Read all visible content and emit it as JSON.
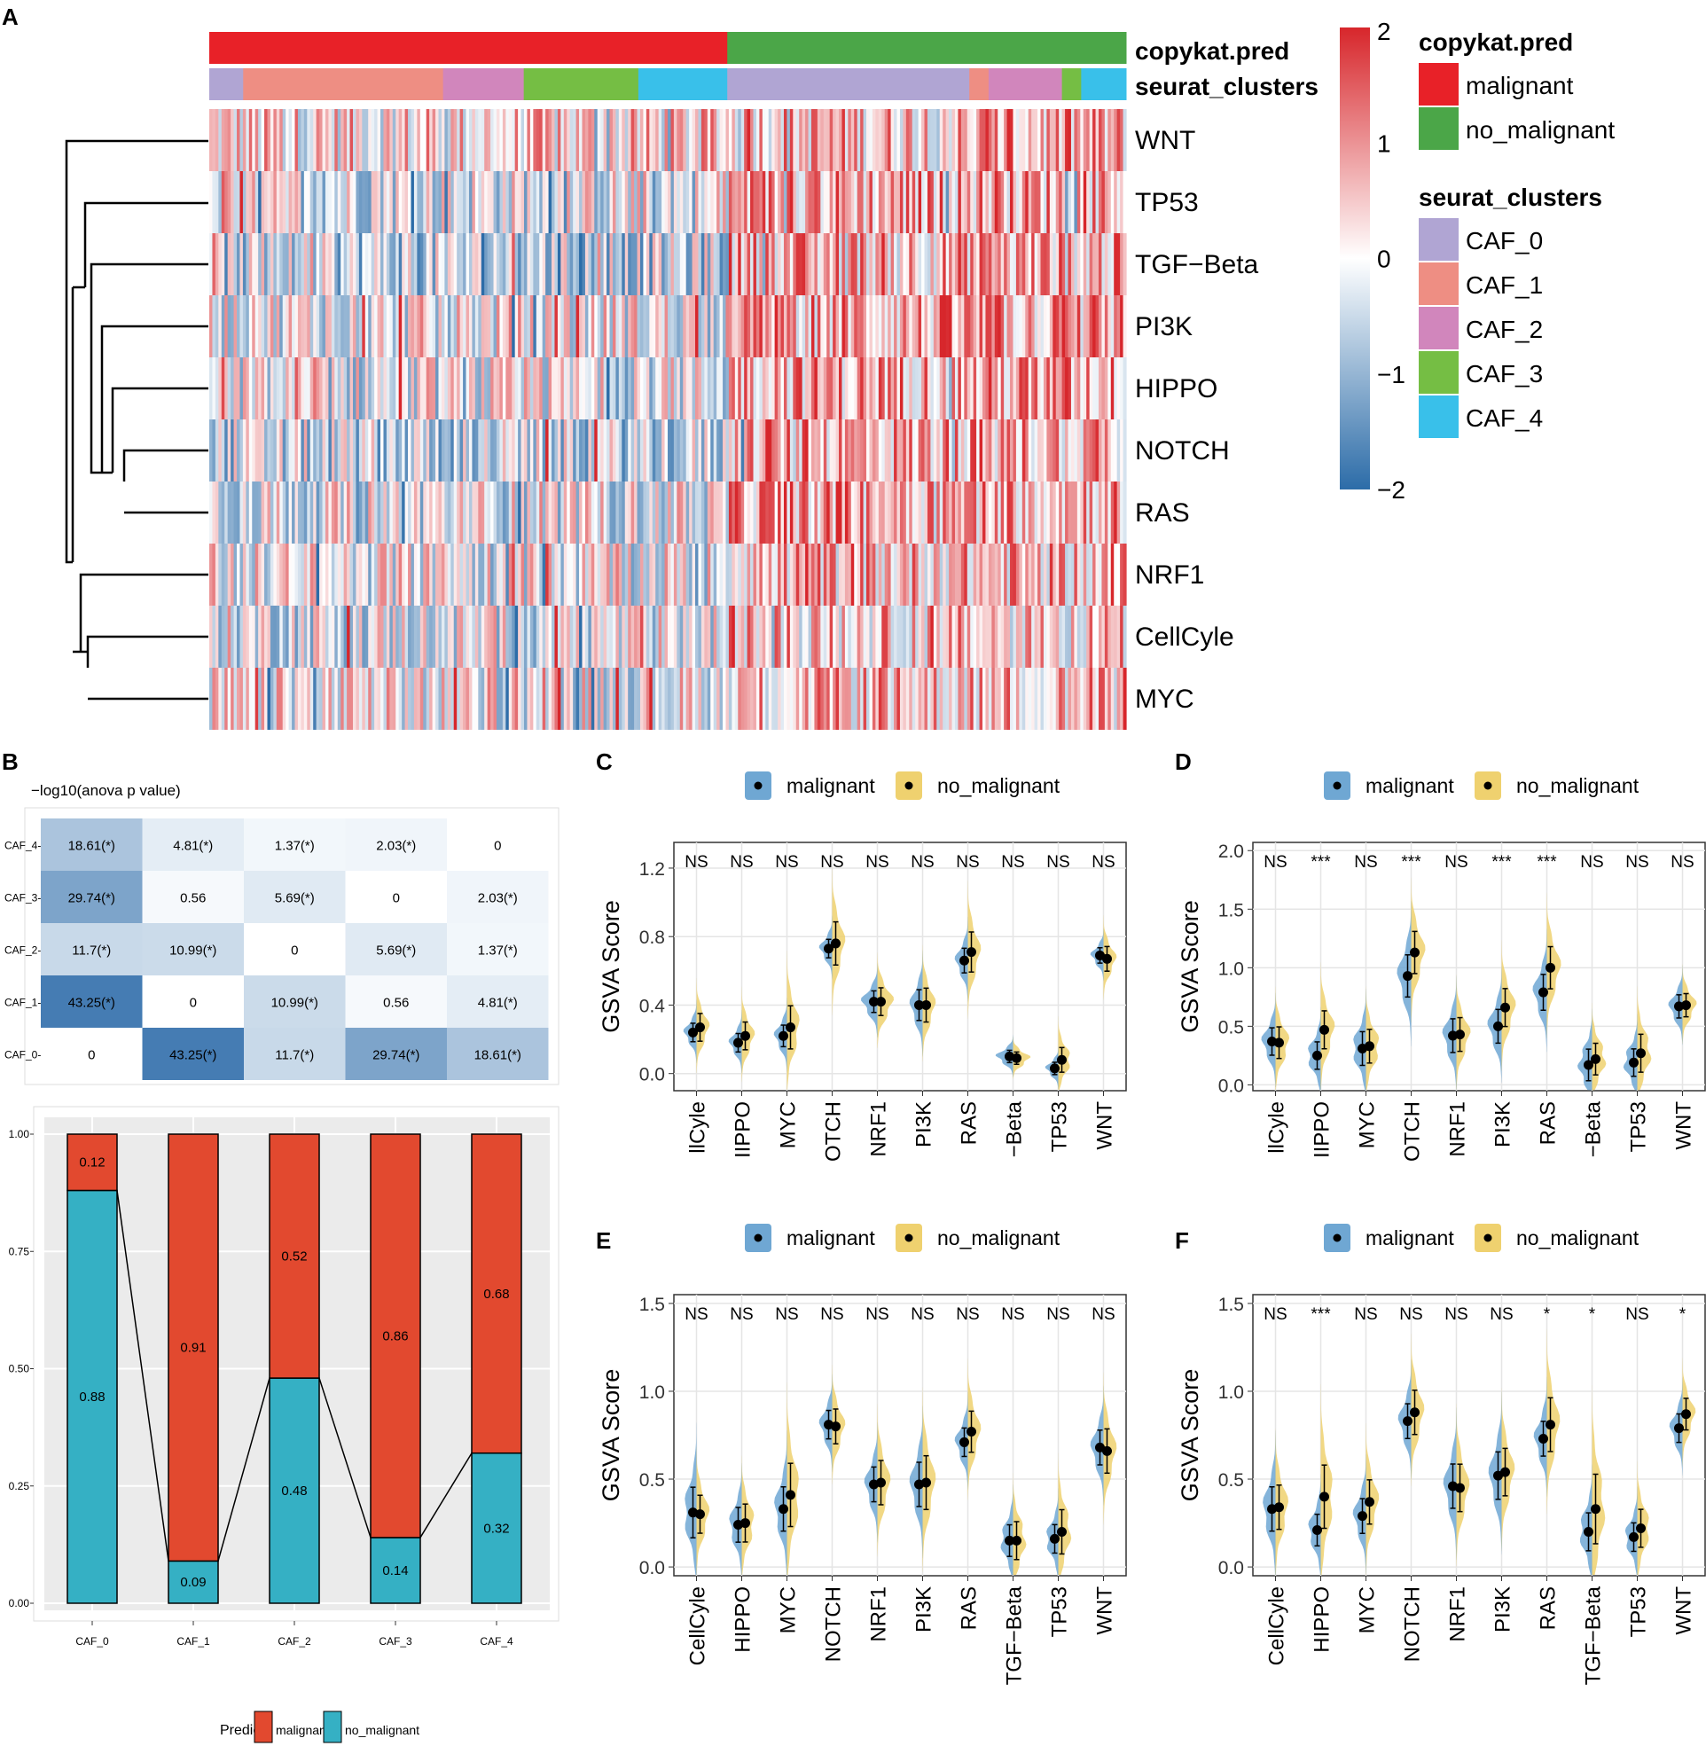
{
  "colors": {
    "malignant_bar": "#E2492F",
    "no_malignant_bar": "#35B0C4",
    "malignant_anno": "#E82128",
    "no_malignant_anno": "#4BA648",
    "violin_malignant": "#6FA7D3",
    "violin_no_malignant": "#EFD16F",
    "heat_high": "#D7262B",
    "heat_low": "#2C6CA8",
    "clusters": [
      "#B0A5D3",
      "#EE8E83",
      "#D186BC",
      "#75BE44",
      "#39C0EA"
    ]
  },
  "panel_letters": {
    "a": "A",
    "b": "B",
    "c": "C",
    "d": "D",
    "e": "E",
    "f": "F"
  },
  "chart_data": [
    {
      "panel": "A",
      "type": "heatmap",
      "annotation_labels": {
        "copykat": "copykat.pred",
        "clusters": "seurat_clusters"
      },
      "rows": [
        "WNT",
        "TP53",
        "TGF−Beta",
        "PI3K",
        "HIPPO",
        "NOTCH",
        "RAS",
        "NRF1",
        "CellCyle",
        "MYC"
      ],
      "row_mean": [
        0.2,
        0.35,
        0.25,
        0.3,
        0.35,
        0.3,
        0.4,
        0.15,
        0.05,
        0.1
      ],
      "left_shift": [
        0.1,
        -0.5,
        -0.75,
        -0.3,
        -0.55,
        -0.75,
        -0.55,
        -0.2,
        -0.2,
        -0.1
      ],
      "copykat_segments": [
        {
          "label": "malignant",
          "fraction": 0.565
        },
        {
          "label": "no_malignant",
          "fraction": 0.435
        }
      ],
      "cluster_segments": [
        {
          "cluster": "CAF_0",
          "fraction": 0.037
        },
        {
          "cluster": "CAF_1",
          "fraction": 0.218
        },
        {
          "cluster": "CAF_2",
          "fraction": 0.088
        },
        {
          "cluster": "CAF_3",
          "fraction": 0.125
        },
        {
          "cluster": "CAF_4",
          "fraction": 0.097
        },
        {
          "cluster": "CAF_0",
          "fraction": 0.264
        },
        {
          "cluster": "CAF_1",
          "fraction": 0.021
        },
        {
          "cluster": "CAF_2",
          "fraction": 0.08
        },
        {
          "cluster": "CAF_3",
          "fraction": 0.021
        },
        {
          "cluster": "CAF_4",
          "fraction": 0.049
        }
      ],
      "color_scale": {
        "ticks": [
          "2",
          "1",
          "0",
          "−1",
          "−2"
        ],
        "range": [
          -2,
          2
        ]
      },
      "legend": {
        "copykat_title": "copykat.pred",
        "copykat_items": [
          "malignant",
          "no_malignant"
        ],
        "clusters_title": "seurat_clusters",
        "cluster_items": [
          "CAF_0",
          "CAF_1",
          "CAF_2",
          "CAF_3",
          "CAF_4"
        ]
      }
    },
    {
      "panel": "B-top",
      "type": "table",
      "title": "−log10(anova p value)",
      "rows": [
        "CAF_4",
        "CAF_3",
        "CAF_2",
        "CAF_1",
        "CAF_0"
      ],
      "values": [
        [
          18.61,
          4.81,
          1.37,
          2.03,
          0
        ],
        [
          29.74,
          0.56,
          5.69,
          0,
          2.03
        ],
        [
          11.7,
          10.99,
          0,
          5.69,
          1.37
        ],
        [
          43.25,
          0,
          10.99,
          0.56,
          4.81
        ],
        [
          0,
          43.25,
          11.7,
          29.74,
          18.61
        ]
      ],
      "cells": [
        [
          "18.61(*)",
          "4.81(*)",
          "1.37(*)",
          "2.03(*)",
          "0"
        ],
        [
          "29.74(*)",
          "0.56",
          "5.69(*)",
          "0",
          "2.03(*)"
        ],
        [
          "11.7(*)",
          "10.99(*)",
          "0",
          "5.69(*)",
          "1.37(*)"
        ],
        [
          "43.25(*)",
          "0",
          "10.99(*)",
          "0.56",
          "4.81(*)"
        ],
        [
          "0",
          "43.25(*)",
          "11.7(*)",
          "29.74(*)",
          "18.61(*)"
        ]
      ]
    },
    {
      "panel": "B-bottom",
      "type": "bar",
      "stacked": true,
      "categories": [
        "CAF_0",
        "CAF_1",
        "CAF_2",
        "CAF_3",
        "CAF_4"
      ],
      "series": [
        {
          "name": "no_malignant",
          "values": [
            0.88,
            0.09,
            0.48,
            0.14,
            0.32
          ],
          "labels": [
            "0.88",
            "0.09",
            "0.48",
            "0.14",
            "0.32"
          ]
        },
        {
          "name": "malignant",
          "values": [
            0.12,
            0.91,
            0.52,
            0.86,
            0.68
          ],
          "labels": [
            "0.12",
            "0.91",
            "0.52",
            "0.86",
            "0.68"
          ]
        }
      ],
      "ylim": [
        0,
        1
      ],
      "yticks": [
        "0.00",
        "0.25",
        "0.50",
        "0.75",
        "1.00"
      ],
      "legend": {
        "title": "Predict",
        "items": [
          "malignant",
          "no_malignant"
        ]
      }
    },
    {
      "panel": "C",
      "type": "violin",
      "ylabel": "GSVA Score",
      "ylim": [
        -0.1,
        1.35
      ],
      "yticks": [
        0.0,
        0.4,
        0.8,
        1.2
      ],
      "yticklabels": [
        "0.0",
        "0.4",
        "0.8",
        "1.2"
      ],
      "categories": [
        "CellCyle",
        "HIPPO",
        "MYC",
        "NOTCH",
        "NRF1",
        "PI3K",
        "RAS",
        "TGF−Beta",
        "TP53",
        "WNT"
      ],
      "xlabels": [
        "llCyle",
        "IIPPO",
        "MYC",
        "OTCH",
        "NRF1",
        "PI3K",
        "RAS",
        "−Beta",
        "TP53",
        "WNT"
      ],
      "significance": [
        "NS",
        "NS",
        "NS",
        "NS",
        "NS",
        "NS",
        "NS",
        "NS",
        "NS",
        "NS"
      ],
      "legend": [
        "malignant",
        "no_malignant"
      ],
      "malignant": {
        "mean": [
          0.24,
          0.18,
          0.22,
          0.73,
          0.42,
          0.4,
          0.66,
          0.1,
          0.03,
          0.69
        ],
        "sd": [
          0.06,
          0.06,
          0.07,
          0.06,
          0.07,
          0.1,
          0.08,
          0.04,
          0.04,
          0.05
        ]
      },
      "no_malignant": {
        "mean": [
          0.27,
          0.22,
          0.27,
          0.76,
          0.42,
          0.4,
          0.71,
          0.09,
          0.08,
          0.67
        ],
        "sd": [
          0.09,
          0.09,
          0.14,
          0.14,
          0.09,
          0.11,
          0.13,
          0.04,
          0.08,
          0.08
        ]
      },
      "violin_width": [
        0.6,
        0.6,
        0.6,
        0.6,
        0.75,
        0.6,
        0.6,
        0.8,
        0.6,
        0.6
      ]
    },
    {
      "panel": "D",
      "type": "violin",
      "ylabel": "GSVA Score",
      "ylim": [
        -0.05,
        2.07
      ],
      "yticks": [
        0.0,
        0.5,
        1.0,
        1.5,
        2.0
      ],
      "yticklabels": [
        "0.0",
        "0.5",
        "1.0",
        "1.5",
        "2.0"
      ],
      "categories": [
        "CellCyle",
        "HIPPO",
        "MYC",
        "NOTCH",
        "NRF1",
        "PI3K",
        "RAS",
        "TGF−Beta",
        "TP53",
        "WNT"
      ],
      "xlabels": [
        "llCyle",
        "IIPPO",
        "MYC",
        "OTCH",
        "NRF1",
        "PI3K",
        "RAS",
        "−Beta",
        "TP53",
        "WNT"
      ],
      "significance": [
        "NS",
        "***",
        "NS",
        "***",
        "NS",
        "***",
        "***",
        "NS",
        "NS",
        "NS"
      ],
      "legend": [
        "malignant",
        "no_malignant"
      ],
      "malignant": {
        "mean": [
          0.37,
          0.25,
          0.31,
          0.93,
          0.42,
          0.5,
          0.79,
          0.17,
          0.19,
          0.67
        ],
        "sd": [
          0.13,
          0.13,
          0.16,
          0.2,
          0.16,
          0.16,
          0.17,
          0.15,
          0.13,
          0.11
        ]
      },
      "no_malignant": {
        "mean": [
          0.36,
          0.47,
          0.33,
          1.13,
          0.43,
          0.66,
          1.0,
          0.22,
          0.27,
          0.68
        ],
        "sd": [
          0.15,
          0.18,
          0.16,
          0.2,
          0.16,
          0.18,
          0.2,
          0.15,
          0.18,
          0.11
        ]
      },
      "violin_width": [
        0.65,
        0.65,
        0.65,
        0.65,
        0.65,
        0.65,
        0.65,
        0.65,
        0.65,
        0.65
      ]
    },
    {
      "panel": "E",
      "type": "violin",
      "ylabel": "GSVA Score",
      "ylim": [
        -0.05,
        1.55
      ],
      "yticks": [
        0.0,
        0.5,
        1.0,
        1.5
      ],
      "yticklabels": [
        "0.0",
        "0.5",
        "1.0",
        "1.5"
      ],
      "categories": [
        "CellCyle",
        "HIPPO",
        "MYC",
        "NOTCH",
        "NRF1",
        "PI3K",
        "RAS",
        "TGF−Beta",
        "TP53",
        "WNT"
      ],
      "xlabels": [
        "CellCyle",
        "HIPPO",
        "MYC",
        "NOTCH",
        "NRF1",
        "PI3K",
        "RAS",
        "TGF−Beta",
        "TP53",
        "WNT"
      ],
      "significance": [
        "NS",
        "NS",
        "NS",
        "NS",
        "NS",
        "NS",
        "NS",
        "NS",
        "NS",
        "NS"
      ],
      "legend": [
        "malignant",
        "no_malignant"
      ],
      "malignant": {
        "mean": [
          0.31,
          0.24,
          0.33,
          0.81,
          0.47,
          0.47,
          0.71,
          0.15,
          0.16,
          0.68
        ],
        "sd": [
          0.16,
          0.11,
          0.14,
          0.09,
          0.11,
          0.14,
          0.09,
          0.1,
          0.09,
          0.11
        ]
      },
      "no_malignant": {
        "mean": [
          0.3,
          0.25,
          0.41,
          0.8,
          0.48,
          0.48,
          0.77,
          0.15,
          0.2,
          0.66
        ],
        "sd": [
          0.12,
          0.12,
          0.2,
          0.11,
          0.14,
          0.17,
          0.13,
          0.12,
          0.14,
          0.14
        ]
      },
      "violin_width": [
        0.6,
        0.6,
        0.6,
        0.6,
        0.6,
        0.6,
        0.6,
        0.6,
        0.6,
        0.6
      ]
    },
    {
      "panel": "F",
      "type": "violin",
      "ylabel": "GSVA Score",
      "ylim": [
        -0.05,
        1.55
      ],
      "yticks": [
        0.0,
        0.5,
        1.0,
        1.5
      ],
      "yticklabels": [
        "0.0",
        "0.5",
        "1.0",
        "1.5"
      ],
      "categories": [
        "CellCyle",
        "HIPPO",
        "MYC",
        "NOTCH",
        "NRF1",
        "PI3K",
        "RAS",
        "TGF−Beta",
        "TP53",
        "WNT"
      ],
      "xlabels": [
        "CellCyle",
        "HIPPO",
        "MYC",
        "NOTCH",
        "NRF1",
        "PI3K",
        "RAS",
        "TGF−Beta",
        "TP53",
        "WNT"
      ],
      "significance": [
        "NS",
        "***",
        "NS",
        "NS",
        "NS",
        "NS",
        "*",
        "*",
        "NS",
        "*"
      ],
      "legend": [
        "malignant",
        "no_malignant"
      ],
      "malignant": {
        "mean": [
          0.33,
          0.21,
          0.29,
          0.83,
          0.46,
          0.52,
          0.73,
          0.2,
          0.17,
          0.79
        ],
        "sd": [
          0.14,
          0.1,
          0.11,
          0.11,
          0.14,
          0.15,
          0.11,
          0.12,
          0.09,
          0.09
        ]
      },
      "no_malignant": {
        "mean": [
          0.34,
          0.4,
          0.37,
          0.88,
          0.45,
          0.54,
          0.81,
          0.33,
          0.22,
          0.87
        ],
        "sd": [
          0.14,
          0.2,
          0.14,
          0.14,
          0.15,
          0.15,
          0.17,
          0.22,
          0.12,
          0.1
        ]
      },
      "violin_width": [
        0.6,
        0.6,
        0.6,
        0.6,
        0.6,
        0.6,
        0.6,
        0.6,
        0.6,
        0.6
      ]
    }
  ]
}
